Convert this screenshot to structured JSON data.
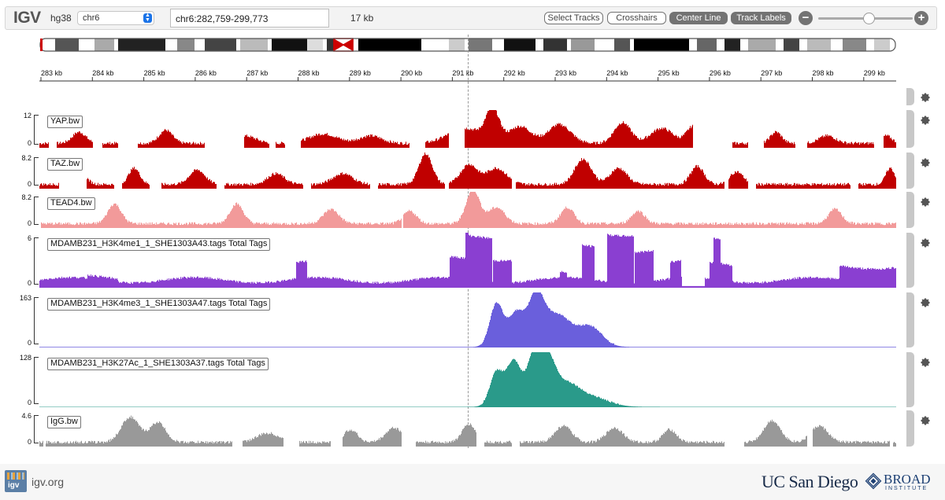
{
  "navbar": {
    "logo": "IGV",
    "genome": "hg38",
    "chromosome": "chr6",
    "locus": "chr6:282,759-299,773",
    "window_size": "17 kb",
    "buttons": {
      "select_tracks": "Select Tracks",
      "crosshairs": "Crosshairs",
      "center_line": "Center Line",
      "track_labels": "Track Labels"
    },
    "zoom_out_icon": "minus-circle-icon",
    "zoom_in_icon": "plus-circle-icon"
  },
  "ruler": {
    "ticks": [
      "283 kb",
      "284 kb",
      "285 kb",
      "286 kb",
      "287 kb",
      "288 kb",
      "289 kb",
      "290 kb",
      "291 kb",
      "292 kb",
      "293 kb",
      "294 kb",
      "295 kb",
      "296 kb",
      "297 kb",
      "298 kb",
      "299 kb"
    ]
  },
  "tracks": [
    {
      "name": "YAP.bw",
      "max": "12",
      "min": "0",
      "color": "#c00000"
    },
    {
      "name": "TAZ.bw",
      "max": "8.2",
      "min": "0",
      "color": "#c00000"
    },
    {
      "name": "TEAD4.bw",
      "max": "8.2",
      "min": "0",
      "color": "#f29a9a"
    },
    {
      "name": "MDAMB231_H3K4me1_1_SHE1303A43.tags Total Tags",
      "max": "6",
      "min": "0",
      "color": "#8a3fd1"
    },
    {
      "name": "MDAMB231_H3K4me3_1_SHE1303A47.tags Total Tags",
      "max": "163",
      "min": "0",
      "color": "#6a5fdc"
    },
    {
      "name": "MDAMB231_H3K27Ac_1_SHE1303A37.tags Total Tags",
      "max": "128",
      "min": "0",
      "color": "#2a9a8a"
    },
    {
      "name": "IgG.bw",
      "max": "4.6",
      "min": "0",
      "color": "#999999"
    }
  ],
  "footer": {
    "link": "igv.org",
    "logo_text": "igv",
    "ucsd": "UC San Diego",
    "broad_title": "BROAD",
    "broad_sub": "INSTITUTE"
  }
}
